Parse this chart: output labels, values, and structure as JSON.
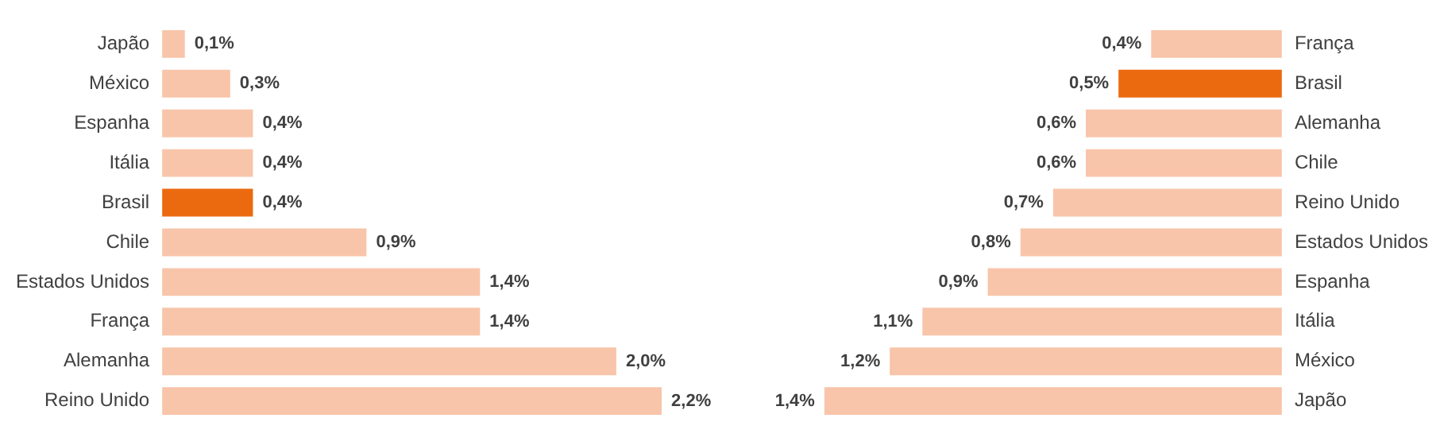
{
  "chart_data": [
    {
      "type": "bar",
      "orientation": "horizontal",
      "categories": [
        "Japão",
        "México",
        "Espanha",
        "Itália",
        "Brasil",
        "Chile",
        "Estados Unidos",
        "França",
        "Alemanha",
        "Reino Unido"
      ],
      "values": [
        0.1,
        0.3,
        0.4,
        0.4,
        0.4,
        0.9,
        1.4,
        1.4,
        2.0,
        2.2
      ],
      "value_labels": [
        "0,1%",
        "0,3%",
        "0,4%",
        "0,4%",
        "0,4%",
        "0,9%",
        "1,4%",
        "1,4%",
        "2,0%",
        "2,2%"
      ],
      "colors": [
        "#f8c5aa",
        "#f8c5aa",
        "#f8c5aa",
        "#f8c5aa",
        "#ec6a0f",
        "#f8c5aa",
        "#f8c5aa",
        "#f8c5aa",
        "#f8c5aa",
        "#f8c5aa"
      ]
    },
    {
      "type": "bar",
      "orientation": "horizontal",
      "categories": [
        "França",
        "Brasil",
        "Alemanha",
        "Chile",
        "Reino Unido",
        "Estados Unidos",
        "Espanha",
        "Itália",
        "México",
        "Japão"
      ],
      "values": [
        0.4,
        0.5,
        0.6,
        0.6,
        0.7,
        0.8,
        0.9,
        1.1,
        1.2,
        1.4
      ],
      "value_labels": [
        "0,4%",
        "0,5%",
        "0,6%",
        "0,6%",
        "0,7%",
        "0,8%",
        "0,9%",
        "1,1%",
        "1,2%",
        "1,4%"
      ],
      "colors": [
        "#f8c5aa",
        "#ec6a0f",
        "#f8c5aa",
        "#f8c5aa",
        "#f8c5aa",
        "#f8c5aa",
        "#f8c5aa",
        "#f8c5aa",
        "#f8c5aa",
        "#f8c5aa"
      ]
    }
  ]
}
